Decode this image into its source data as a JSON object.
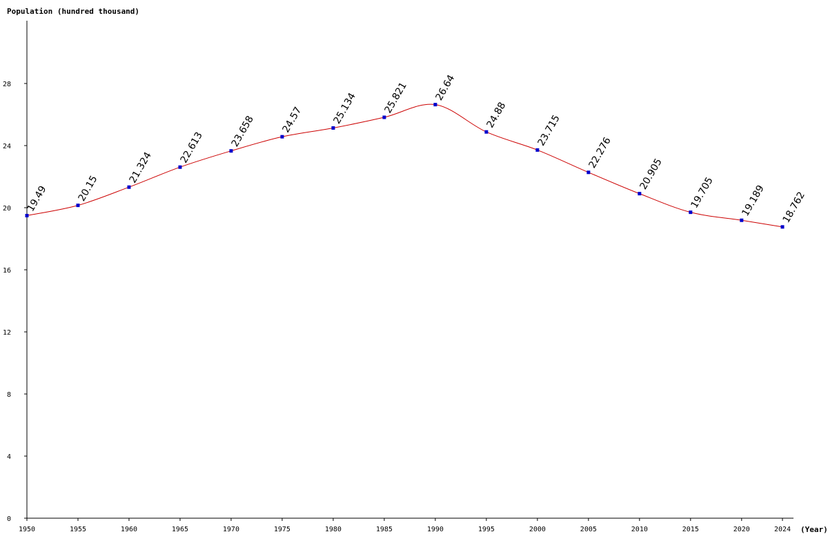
{
  "chart_data": {
    "type": "line",
    "title": "",
    "ylabel": "Population (hundred thousand)",
    "xlabel": "(Year)",
    "ylim": [
      0,
      32
    ],
    "yticks": [
      0,
      4,
      8,
      12,
      16,
      20,
      24,
      28
    ],
    "xlim": [
      1950,
      2024
    ],
    "x": [
      1950,
      1955,
      1960,
      1965,
      1970,
      1975,
      1980,
      1985,
      1990,
      1995,
      2000,
      2005,
      2010,
      2015,
      2020,
      2024
    ],
    "x_tick_labels": [
      "1950",
      "1955",
      "1960",
      "1965",
      "1970",
      "1975",
      "1980",
      "1985",
      "1990",
      "1995",
      "2000",
      "2005",
      "2010",
      "2015",
      "2020",
      "2024"
    ],
    "series": [
      {
        "values": [
          19.49,
          20.15,
          21.324,
          22.613,
          23.658,
          24.57,
          25.134,
          25.821,
          26.64,
          24.88,
          23.715,
          22.276,
          20.905,
          19.705,
          19.189,
          18.762
        ],
        "labels": [
          "19.49",
          "20.15",
          "21.324",
          "22.613",
          "23.658",
          "24.57",
          "25.134",
          "25.821",
          "26.64",
          "24.88",
          "23.715",
          "22.276",
          "20.905",
          "19.705",
          "19.189",
          "18.762"
        ]
      }
    ],
    "grid": false,
    "colors": {
      "line": "#cc0000",
      "marker": "#0000cc",
      "axis": "#000000"
    }
  }
}
